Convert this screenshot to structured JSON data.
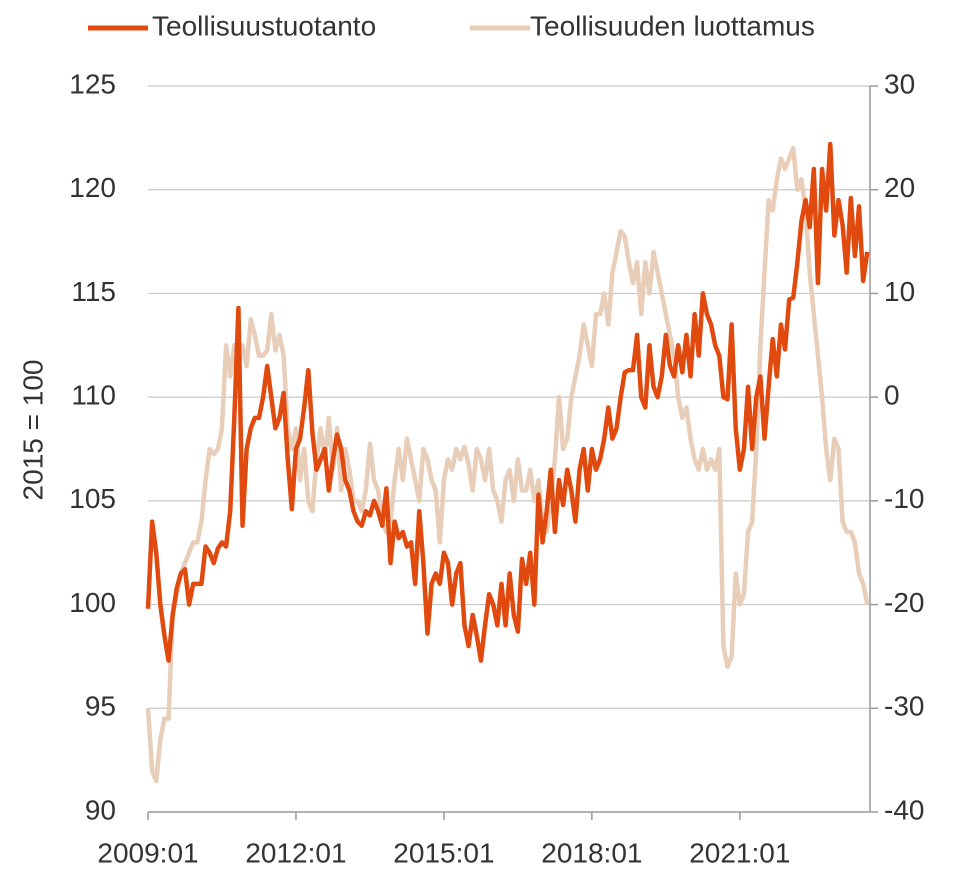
{
  "chart_data": {
    "type": "line",
    "ylabel": "2015 = 100",
    "categories": [
      "2009:01",
      "2009:02",
      "2009:03",
      "2009:04",
      "2009:05",
      "2009:06",
      "2009:07",
      "2009:08",
      "2009:09",
      "2009:10",
      "2009:11",
      "2009:12",
      "2010:01",
      "2010:02",
      "2010:03",
      "2010:04",
      "2010:05",
      "2010:06",
      "2010:07",
      "2010:08",
      "2010:09",
      "2010:10",
      "2010:11",
      "2010:12",
      "2011:01",
      "2011:02",
      "2011:03",
      "2011:04",
      "2011:05",
      "2011:06",
      "2011:07",
      "2011:08",
      "2011:09",
      "2011:10",
      "2011:11",
      "2011:12",
      "2012:01",
      "2012:02",
      "2012:03",
      "2012:04",
      "2012:05",
      "2012:06",
      "2012:07",
      "2012:08",
      "2012:09",
      "2012:10",
      "2012:11",
      "2012:12",
      "2013:01",
      "2013:02",
      "2013:03",
      "2013:04",
      "2013:05",
      "2013:06",
      "2013:07",
      "2013:08",
      "2013:09",
      "2013:10",
      "2013:11",
      "2013:12",
      "2014:01",
      "2014:02",
      "2014:03",
      "2014:04",
      "2014:05",
      "2014:06",
      "2014:07",
      "2014:08",
      "2014:09",
      "2014:10",
      "2014:11",
      "2014:12",
      "2015:01",
      "2015:02",
      "2015:03",
      "2015:04",
      "2015:05",
      "2015:06",
      "2015:07",
      "2015:08",
      "2015:09",
      "2015:10",
      "2015:11",
      "2015:12",
      "2016:01",
      "2016:02",
      "2016:03",
      "2016:04",
      "2016:05",
      "2016:06",
      "2016:07",
      "2016:08",
      "2016:09",
      "2016:10",
      "2016:11",
      "2016:12",
      "2017:01",
      "2017:02",
      "2017:03",
      "2017:04",
      "2017:05",
      "2017:06",
      "2017:07",
      "2017:08",
      "2017:09",
      "2017:10",
      "2017:11",
      "2017:12",
      "2018:01",
      "2018:02",
      "2018:03",
      "2018:04",
      "2018:05",
      "2018:06",
      "2018:07",
      "2018:08",
      "2018:09",
      "2018:10",
      "2018:11",
      "2018:12",
      "2019:01",
      "2019:02",
      "2019:03",
      "2019:04",
      "2019:05",
      "2019:06",
      "2019:07",
      "2019:08",
      "2019:09",
      "2019:10",
      "2019:11",
      "2019:12",
      "2020:01",
      "2020:02",
      "2020:03",
      "2020:04",
      "2020:05",
      "2020:06",
      "2020:07",
      "2020:08",
      "2020:09",
      "2020:10",
      "2020:11",
      "2020:12",
      "2021:01",
      "2021:02",
      "2021:03",
      "2021:04",
      "2021:05",
      "2021:06",
      "2021:07",
      "2021:08",
      "2021:09",
      "2021:10",
      "2021:11",
      "2021:12",
      "2022:01",
      "2022:02",
      "2022:03",
      "2022:04",
      "2022:05",
      "2022:06",
      "2022:07",
      "2022:08",
      "2022:09",
      "2022:10",
      "2022:11",
      "2022:12",
      "2023:01",
      "2023:02",
      "2023:03",
      "2023:04",
      "2023:05",
      "2023:06",
      "2023:07",
      "2023:08"
    ],
    "xticks": [
      "2009:01",
      "2012:01",
      "2015:01",
      "2018:01",
      "2021:01"
    ],
    "ylim": [
      90,
      125
    ],
    "yticks": [
      90,
      95,
      100,
      105,
      110,
      115,
      120,
      125
    ],
    "y2lim": [
      -40,
      30
    ],
    "y2ticks": [
      -40,
      -30,
      -20,
      -10,
      0,
      10,
      20,
      30
    ],
    "grid": true,
    "legend": "top",
    "series": [
      {
        "name": "Teollisuustuotanto",
        "color": "#e04a0e",
        "values": [
          99.8,
          104,
          102.5,
          100,
          98.5,
          97.3,
          99.5,
          100.8,
          101.5,
          101.7,
          100,
          101,
          101,
          101,
          102.8,
          102.5,
          102,
          102.7,
          103,
          102.8,
          104.5,
          109,
          114.3,
          103.8,
          107.5,
          108.5,
          109,
          109,
          110,
          111.5,
          110,
          108.5,
          109,
          110.2,
          107,
          104.6,
          107.5,
          108,
          109.5,
          111.3,
          108.3,
          106.5,
          107,
          107.5,
          105.5,
          107,
          108.2,
          107.5,
          106,
          105.5,
          104.5,
          104,
          103.8,
          104.5,
          104.3,
          105,
          104.5,
          103.8,
          105.6,
          102,
          104,
          103.2,
          103.5,
          102.8,
          103,
          101,
          104.5,
          102,
          98.6,
          101,
          101.5,
          101,
          102.5,
          102,
          100,
          101.5,
          102,
          99,
          98,
          99.5,
          98.5,
          97.3,
          99,
          100.5,
          100,
          99,
          101,
          99,
          101.5,
          99.5,
          98.7,
          102.2,
          101,
          102.5,
          100,
          105.3,
          103,
          104.5,
          106.5,
          103.5,
          106,
          104.8,
          106.5,
          105.5,
          104,
          106.5,
          107.5,
          105.5,
          107.5,
          106.5,
          107,
          108,
          109.5,
          108,
          108.5,
          110,
          111.2,
          111.3,
          111.3,
          113,
          110,
          109.5,
          112.5,
          110.5,
          110,
          111,
          113,
          111.5,
          111,
          112.5,
          111.2,
          113,
          111,
          114,
          112,
          115,
          114,
          113.5,
          112.5,
          112,
          110,
          109.9,
          113.5,
          108.5,
          106.5,
          107.5,
          110.5,
          107.5,
          110,
          111,
          108,
          110.5,
          112.8,
          111,
          113.5,
          112.3,
          114.7,
          114.8,
          116.5,
          118.5,
          119.5,
          118.2,
          121,
          115.5,
          121,
          119,
          122.2,
          117.8,
          119.5,
          118.3,
          116,
          119.6,
          116.8,
          119.2,
          115.6,
          117
        ]
      },
      {
        "name": "Teollisuuden luottamus",
        "color": "#e8cdb9",
        "axis": "y2",
        "values": [
          -30,
          -36,
          -37,
          -33,
          -31,
          -31,
          -21,
          -19,
          -17,
          -16,
          -15,
          -14,
          -14,
          -12,
          -8,
          -5,
          -5.5,
          -5,
          -3,
          5,
          2,
          5,
          3,
          5,
          3,
          7.5,
          6,
          4,
          4,
          4.5,
          8,
          4.5,
          6,
          4,
          -3,
          -5,
          -3,
          -8,
          -5,
          -10,
          -11,
          -6,
          -3,
          -6,
          -2,
          -7,
          -3,
          -9,
          -5,
          -7,
          -10,
          -10,
          -11,
          -9,
          -4.5,
          -8,
          -9,
          -12,
          -13,
          -12,
          -8,
          -5,
          -8,
          -4,
          -6,
          -8,
          -10,
          -5,
          -6,
          -8,
          -9,
          -14,
          -8,
          -6,
          -7,
          -5,
          -6,
          -4.8,
          -6.5,
          -9,
          -5,
          -6,
          -8,
          -5,
          -9,
          -10,
          -12,
          -8,
          -7,
          -10,
          -6,
          -9,
          -9,
          -7,
          -10,
          -8,
          -12,
          -13,
          -10,
          -6,
          0,
          -5,
          -4,
          0,
          2,
          4,
          7,
          5,
          3,
          8,
          8,
          10,
          7,
          12,
          14,
          16,
          15.5,
          13,
          11,
          13,
          8,
          13,
          10,
          14,
          12,
          10,
          8,
          6,
          4,
          0,
          -2,
          -1,
          -4,
          -6,
          -7,
          -5,
          -7,
          -6,
          -7,
          -5,
          -24,
          -26,
          -25,
          -17,
          -20,
          -19,
          -13,
          -12,
          -5,
          5,
          12,
          19,
          18,
          21,
          23,
          22,
          23,
          24,
          20,
          21,
          18,
          12,
          8,
          4,
          0,
          -5,
          -8,
          -4,
          -5,
          -12,
          -13,
          -13,
          -14,
          -17,
          -18,
          -20
        ]
      }
    ]
  }
}
